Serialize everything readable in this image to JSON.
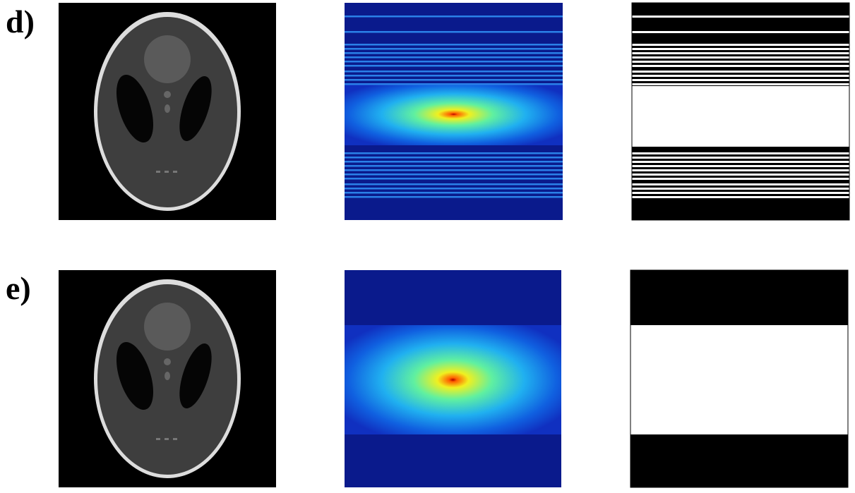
{
  "panels": [
    {
      "label": "d)"
    },
    {
      "label": "e)"
    }
  ]
}
